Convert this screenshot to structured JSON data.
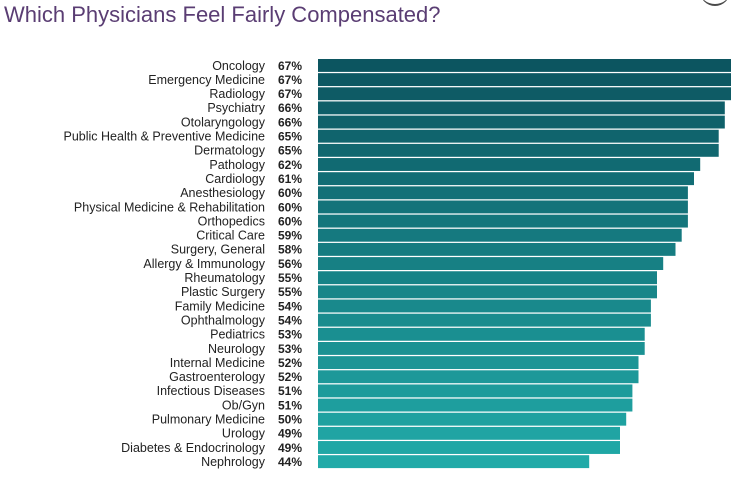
{
  "title": "Which Physicians Feel Fairly Compensated?",
  "chart_data": {
    "type": "bar",
    "orientation": "horizontal",
    "title": "Which Physicians Feel Fairly Compensated?",
    "categories": [
      "Oncology",
      "Emergency Medicine",
      "Radiology",
      "Psychiatry",
      "Otolaryngology",
      "Public Health & Preventive Medicine",
      "Dermatology",
      "Pathology",
      "Cardiology",
      "Anesthesiology",
      "Physical Medicine & Rehabilitation",
      "Orthopedics",
      "Critical Care",
      "Surgery, General",
      "Allergy & Immunology",
      "Rheumatology",
      "Plastic Surgery",
      "Family Medicine",
      "Ophthalmology",
      "Pediatrics",
      "Neurology",
      "Internal Medicine",
      "Gastroenterology",
      "Infectious Diseases",
      "Ob/Gyn",
      "Pulmonary Medicine",
      "Urology",
      "Diabetes & Endocrinology",
      "Nephrology"
    ],
    "values": [
      67,
      67,
      67,
      66,
      66,
      65,
      65,
      62,
      61,
      60,
      60,
      60,
      59,
      58,
      56,
      55,
      55,
      54,
      54,
      53,
      53,
      52,
      52,
      51,
      51,
      50,
      49,
      49,
      44
    ],
    "value_labels": [
      "67%",
      "67%",
      "67%",
      "66%",
      "66%",
      "65%",
      "65%",
      "62%",
      "61%",
      "60%",
      "60%",
      "60%",
      "59%",
      "58%",
      "56%",
      "55%",
      "55%",
      "54%",
      "54%",
      "53%",
      "53%",
      "52%",
      "52%",
      "51%",
      "51%",
      "50%",
      "49%",
      "49%",
      "44%"
    ],
    "value_unit": "%",
    "color_start": "#0c5560",
    "color_end": "#21aaa8",
    "grid": false,
    "legend": "none"
  }
}
